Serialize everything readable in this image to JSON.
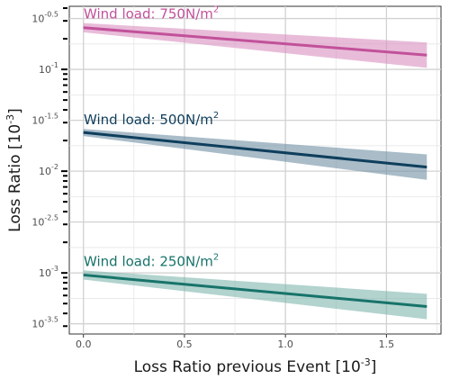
{
  "chart_data": {
    "type": "line",
    "xlabel": "Loss Ratio previous Event",
    "xlabel_unit": "-3",
    "ylabel": "Loss Ratio",
    "ylabel_unit": "-3",
    "y_scale": "log10",
    "grid": true,
    "legend": "none",
    "xlim": [
      -0.07,
      1.77
    ],
    "ylim_log10": [
      -3.6,
      -0.38
    ],
    "x_ticks": [
      0,
      0.5,
      1,
      1.5
    ],
    "x_tick_labels": [
      "0.0",
      "0.5",
      "1.0",
      "1.5"
    ],
    "y_ticks_log10": [
      -3.5,
      -3,
      -2.5,
      -2,
      -1.5,
      -1,
      -0.5
    ],
    "y_tick_labels": [
      {
        "base": "10",
        "exp": "-3.5"
      },
      {
        "base": "10",
        "exp": "-3"
      },
      {
        "base": "10",
        "exp": "-2.5"
      },
      {
        "base": "10",
        "exp": "-2"
      },
      {
        "base": "10",
        "exp": "-1.5"
      },
      {
        "base": "10",
        "exp": "-1"
      },
      {
        "base": "10",
        "exp": "-0.5"
      }
    ],
    "series": [
      {
        "name": "Wind load: 750N/m",
        "name_exp": "2",
        "color": "#c2519a",
        "band_color": "#d98fbf",
        "x": [
          0.0,
          1.7
        ],
        "y_log10": [
          -0.59,
          -0.86
        ],
        "lower_log10": [
          -0.635,
          -0.985
        ],
        "upper_log10": [
          -0.545,
          -0.735
        ]
      },
      {
        "name": "Wind load: 500N/m",
        "name_exp": "2",
        "color": "#0e3e5c",
        "band_color": "#6f8fa3",
        "x": [
          0.0,
          1.7
        ],
        "y_log10": [
          -1.62,
          -1.96
        ],
        "lower_log10": [
          -1.655,
          -2.085
        ],
        "upper_log10": [
          -1.585,
          -1.835
        ]
      },
      {
        "name": "Wind load: 250N/m",
        "name_exp": "2",
        "color": "#17736a",
        "band_color": "#7fb5ae",
        "x": [
          0.0,
          1.7
        ],
        "y_log10": [
          -3.02,
          -3.33
        ],
        "lower_log10": [
          -3.065,
          -3.455
        ],
        "upper_log10": [
          -2.975,
          -3.205
        ]
      }
    ]
  }
}
